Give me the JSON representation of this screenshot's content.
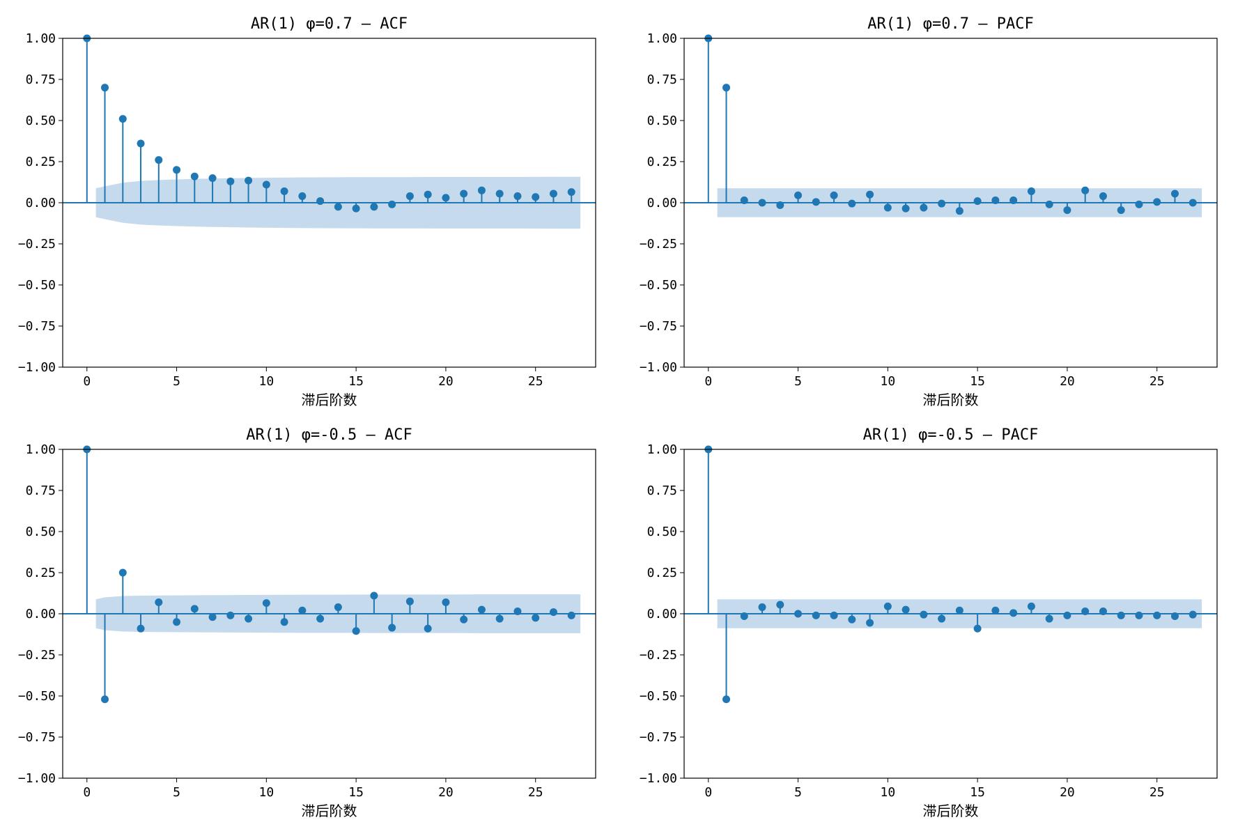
{
  "colors": {
    "stem": "#1f77b4",
    "band": "#a6c8e3",
    "axis": "#000000",
    "background": "#ffffff"
  },
  "chart_data": [
    {
      "type": "stem",
      "title": "AR(1)  φ=0.7 — ACF",
      "xlabel": "滞后阶数",
      "ylabel": "",
      "xlim": [
        -1.35,
        28.35
      ],
      "ylim": [
        -1,
        1
      ],
      "xticks": [
        0,
        5,
        10,
        15,
        20,
        25
      ],
      "yticks": [
        -1,
        -0.75,
        -0.5,
        -0.25,
        0,
        0.25,
        0.5,
        0.75,
        1
      ],
      "ytick_labels": [
        "−1.00",
        "−0.75",
        "−0.50",
        "−0.25",
        "0.00",
        "0.25",
        "0.50",
        "0.75",
        "1.00"
      ],
      "grid": false,
      "x": [
        0,
        1,
        2,
        3,
        4,
        5,
        6,
        7,
        8,
        9,
        10,
        11,
        12,
        13,
        14,
        15,
        16,
        17,
        18,
        19,
        20,
        21,
        22,
        23,
        24,
        25,
        26,
        27
      ],
      "values": [
        1.0,
        0.7,
        0.51,
        0.36,
        0.26,
        0.2,
        0.16,
        0.15,
        0.13,
        0.135,
        0.11,
        0.07,
        0.04,
        0.01,
        -0.025,
        -0.035,
        -0.025,
        -0.01,
        0.04,
        0.05,
        0.03,
        0.055,
        0.075,
        0.055,
        0.04,
        0.035,
        0.055,
        0.065
      ],
      "conf_band": {
        "x": [
          0.5,
          1,
          2,
          3,
          4,
          5,
          6,
          7,
          8,
          9,
          10,
          12,
          14,
          16,
          18,
          20,
          22,
          24,
          26,
          27.5
        ],
        "upper": [
          0.088,
          0.1,
          0.122,
          0.133,
          0.138,
          0.142,
          0.145,
          0.147,
          0.149,
          0.151,
          0.152,
          0.154,
          0.155,
          0.156,
          0.156,
          0.157,
          0.157,
          0.157,
          0.158,
          0.158
        ]
      }
    },
    {
      "type": "stem",
      "title": "AR(1)  φ=0.7 — PACF",
      "xlabel": "滞后阶数",
      "ylabel": "",
      "xlim": [
        -1.35,
        28.35
      ],
      "ylim": [
        -1,
        1
      ],
      "xticks": [
        0,
        5,
        10,
        15,
        20,
        25
      ],
      "yticks": [
        -1,
        -0.75,
        -0.5,
        -0.25,
        0,
        0.25,
        0.5,
        0.75,
        1
      ],
      "ytick_labels": [
        "−1.00",
        "−0.75",
        "−0.50",
        "−0.25",
        "0.00",
        "0.25",
        "0.50",
        "0.75",
        "1.00"
      ],
      "grid": false,
      "x": [
        0,
        1,
        2,
        3,
        4,
        5,
        6,
        7,
        8,
        9,
        10,
        11,
        12,
        13,
        14,
        15,
        16,
        17,
        18,
        19,
        20,
        21,
        22,
        23,
        24,
        25,
        26,
        27
      ],
      "values": [
        1.0,
        0.7,
        0.015,
        0.0,
        -0.015,
        0.045,
        0.005,
        0.045,
        -0.005,
        0.05,
        -0.03,
        -0.035,
        -0.03,
        -0.005,
        -0.05,
        0.01,
        0.015,
        0.015,
        0.07,
        -0.01,
        -0.045,
        0.075,
        0.04,
        -0.045,
        -0.01,
        0.005,
        0.055,
        0.0
      ],
      "conf_band": {
        "x": [
          0.5,
          27.5
        ],
        "upper": [
          0.088,
          0.088
        ]
      }
    },
    {
      "type": "stem",
      "title": "AR(1)  φ=-0.5 — ACF",
      "xlabel": "滞后阶数",
      "ylabel": "",
      "xlim": [
        -1.35,
        28.35
      ],
      "ylim": [
        -1,
        1
      ],
      "xticks": [
        0,
        5,
        10,
        15,
        20,
        25
      ],
      "yticks": [
        -1,
        -0.75,
        -0.5,
        -0.25,
        0,
        0.25,
        0.5,
        0.75,
        1
      ],
      "ytick_labels": [
        "−1.00",
        "−0.75",
        "−0.50",
        "−0.25",
        "0.00",
        "0.25",
        "0.50",
        "0.75",
        "1.00"
      ],
      "grid": false,
      "x": [
        0,
        1,
        2,
        3,
        4,
        5,
        6,
        7,
        8,
        9,
        10,
        11,
        12,
        13,
        14,
        15,
        16,
        17,
        18,
        19,
        20,
        21,
        22,
        23,
        24,
        25,
        26,
        27
      ],
      "values": [
        1.0,
        -0.52,
        0.25,
        -0.09,
        0.07,
        -0.05,
        0.03,
        -0.02,
        -0.01,
        -0.03,
        0.065,
        -0.05,
        0.02,
        -0.03,
        0.04,
        -0.105,
        0.11,
        -0.085,
        0.075,
        -0.09,
        0.07,
        -0.035,
        0.025,
        -0.03,
        0.015,
        -0.025,
        0.01,
        -0.01
      ],
      "conf_band": {
        "x": [
          0.5,
          1,
          2,
          3,
          4,
          5,
          6,
          8,
          10,
          12,
          14,
          16,
          18,
          20,
          22,
          24,
          26,
          27.5
        ],
        "upper": [
          0.088,
          0.1,
          0.108,
          0.11,
          0.111,
          0.112,
          0.113,
          0.114,
          0.115,
          0.116,
          0.116,
          0.117,
          0.117,
          0.117,
          0.118,
          0.118,
          0.118,
          0.118
        ]
      }
    },
    {
      "type": "stem",
      "title": "AR(1)  φ=-0.5 — PACF",
      "xlabel": "滞后阶数",
      "ylabel": "",
      "xlim": [
        -1.35,
        28.35
      ],
      "ylim": [
        -1,
        1
      ],
      "xticks": [
        0,
        5,
        10,
        15,
        20,
        25
      ],
      "yticks": [
        -1,
        -0.75,
        -0.5,
        -0.25,
        0,
        0.25,
        0.5,
        0.75,
        1
      ],
      "ytick_labels": [
        "−1.00",
        "−0.75",
        "−0.50",
        "−0.25",
        "0.00",
        "0.25",
        "0.50",
        "0.75",
        "1.00"
      ],
      "grid": false,
      "x": [
        0,
        1,
        2,
        3,
        4,
        5,
        6,
        7,
        8,
        9,
        10,
        11,
        12,
        13,
        14,
        15,
        16,
        17,
        18,
        19,
        20,
        21,
        22,
        23,
        24,
        25,
        26,
        27
      ],
      "values": [
        1.0,
        -0.52,
        -0.015,
        0.04,
        0.055,
        0.0,
        -0.01,
        -0.01,
        -0.035,
        -0.055,
        0.045,
        0.025,
        -0.005,
        -0.03,
        0.02,
        -0.09,
        0.02,
        0.005,
        0.045,
        -0.03,
        -0.01,
        0.015,
        0.015,
        -0.01,
        -0.01,
        -0.01,
        -0.015,
        -0.005
      ],
      "conf_band": {
        "x": [
          0.5,
          27.5
        ],
        "upper": [
          0.088,
          0.088
        ]
      }
    }
  ]
}
